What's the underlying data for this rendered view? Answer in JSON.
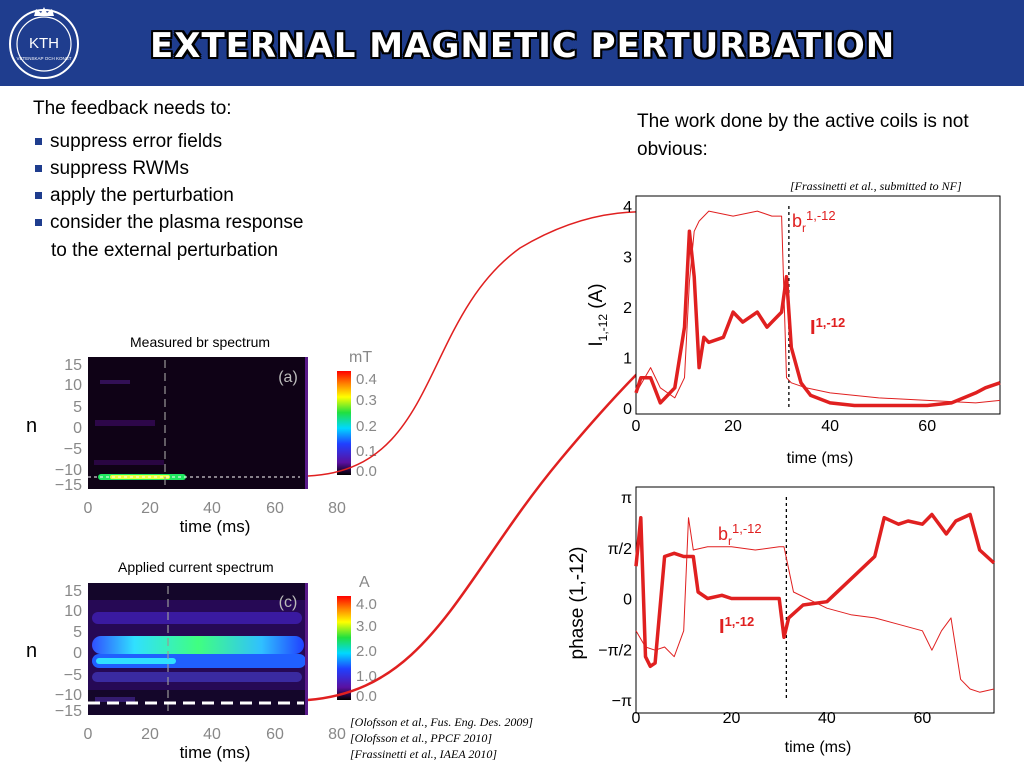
{
  "header": {
    "title": "EXTERNAL MAGNETIC PERTURBATION",
    "logo_text": "KTH",
    "logo_subtext": "VETENSKAP OCH KONST"
  },
  "left": {
    "intro": "The feedback needs to:",
    "bullets": [
      "suppress error fields",
      "suppress RWMs",
      "apply the perturbation",
      "consider the plasma response"
    ],
    "continuation": "to the external perturbation"
  },
  "right": {
    "text": "The work done by the active coils is not obvious:",
    "reference": "[Frassinetti et al., submitted to  NF]"
  },
  "spectra": [
    {
      "title": "Measured br spectrum",
      "unit": "mT",
      "panel_label": "(a)",
      "ylabel": "n",
      "xlabel": "time (ms)",
      "y_ticks": [
        "15",
        "10",
        "5",
        "0",
        "−5",
        "−10",
        "−15"
      ],
      "x_ticks": [
        "0",
        "20",
        "40",
        "60",
        "80"
      ],
      "colorbar_ticks": [
        "0.4",
        "0.3",
        "0.2",
        "0.1",
        "0.0"
      ]
    },
    {
      "title": "Applied current spectrum",
      "unit": "A",
      "panel_label": "(c)",
      "ylabel": "n",
      "xlabel": "time (ms)",
      "y_ticks": [
        "15",
        "10",
        "5",
        "0",
        "−5",
        "−10",
        "−15"
      ],
      "x_ticks": [
        "0",
        "20",
        "40",
        "60",
        "80"
      ],
      "colorbar_ticks": [
        "4.0",
        "3.0",
        "2.0",
        "1.0",
        "0.0"
      ]
    }
  ],
  "references_bottom": [
    "[Olofsson et  al., Fus. Eng. Des. 2009]",
    "[Olofsson et  al., PPCF 2010]",
    "[Frassinetti et al., IAEA 2010]"
  ],
  "chart_data": [
    {
      "type": "line",
      "xlabel": "time (ms)",
      "ylabel": "I1,-12 (A)",
      "xlim": [
        0,
        75
      ],
      "ylim": [
        0,
        4
      ],
      "x_ticks": [
        "0",
        "20",
        "40",
        "60"
      ],
      "y_ticks": [
        "4",
        "3",
        "2",
        "1",
        "0"
      ],
      "vline_x": 31.5,
      "series": [
        {
          "name": "br1,-12",
          "color": "#e02020",
          "x": [
            0,
            3,
            5,
            8,
            10,
            11,
            12,
            13,
            15,
            20,
            25,
            28,
            30,
            31,
            32,
            35,
            40,
            50,
            60,
            70,
            75
          ],
          "y": [
            0.3,
            0.8,
            0.4,
            0.2,
            0.6,
            2.5,
            3.5,
            3.7,
            3.9,
            3.8,
            3.9,
            3.8,
            3.8,
            0.6,
            0.5,
            0.4,
            0.3,
            0.2,
            0.15,
            0.1,
            0.15
          ]
        },
        {
          "name": "I1,-12",
          "color": "#e02020",
          "x": [
            0,
            1,
            3,
            5,
            8,
            10,
            11,
            12,
            13,
            14,
            15,
            18,
            20,
            22,
            25,
            27,
            28,
            30,
            31,
            32,
            34,
            36,
            40,
            45,
            50,
            55,
            60,
            65,
            70,
            72,
            75
          ],
          "y": [
            0.3,
            0.6,
            0.6,
            0.1,
            0.4,
            1.6,
            3.5,
            2.6,
            0.8,
            1.4,
            1.3,
            1.4,
            1.9,
            1.7,
            1.9,
            1.6,
            1.7,
            1.9,
            2.6,
            1.2,
            0.5,
            0.25,
            0.1,
            0.05,
            0.05,
            0.05,
            0.05,
            0.1,
            0.3,
            0.4,
            0.5
          ]
        }
      ]
    },
    {
      "type": "line",
      "xlabel": "time (ms)",
      "ylabel": "phase (1,-12)",
      "xlim": [
        0,
        75
      ],
      "ylim": [
        -3.1416,
        3.1416
      ],
      "x_ticks": [
        "0",
        "20",
        "40",
        "60"
      ],
      "y_ticks": [
        "π",
        "π/2",
        "0",
        "−π/2",
        "−π"
      ],
      "vline_x": 31.5,
      "series": [
        {
          "name": "br1,-12",
          "color": "#e02020",
          "x": [
            0,
            2,
            4,
            6,
            8,
            10,
            11,
            12,
            15,
            20,
            25,
            30,
            31,
            33,
            40,
            45,
            50,
            55,
            60,
            62,
            64,
            66,
            68,
            70,
            72,
            75
          ],
          "y": [
            -1.0,
            -1.5,
            -1.6,
            -1.5,
            -1.8,
            -1.0,
            2.5,
            1.5,
            1.6,
            1.6,
            1.5,
            1.6,
            1.6,
            0.2,
            -0.3,
            -0.5,
            -0.6,
            -0.8,
            -1.0,
            -1.6,
            -1.0,
            -0.6,
            -2.5,
            -2.8,
            -2.9,
            -2.8
          ]
        },
        {
          "name": "I1,-12",
          "color": "#e02020",
          "x": [
            0,
            1,
            2,
            3,
            4,
            6,
            8,
            10,
            12,
            13,
            15,
            18,
            20,
            25,
            30,
            31,
            32,
            35,
            40,
            45,
            50,
            52,
            55,
            57,
            60,
            62,
            65,
            67,
            70,
            72,
            75
          ],
          "y": [
            1.0,
            2.5,
            -1.8,
            -2.1,
            -2.0,
            1.3,
            1.4,
            1.3,
            1.3,
            0.2,
            0.0,
            0.1,
            0.0,
            0.0,
            0.0,
            -1.2,
            -0.6,
            -0.2,
            -0.1,
            0.6,
            1.3,
            2.5,
            2.3,
            2.4,
            2.3,
            2.6,
            2.0,
            2.4,
            2.6,
            1.5,
            1.1
          ]
        }
      ]
    }
  ]
}
